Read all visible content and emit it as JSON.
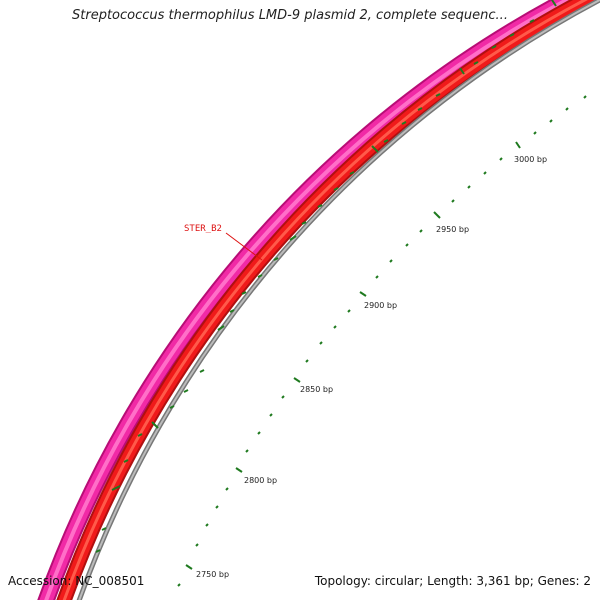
{
  "map": {
    "title": "Streptococcus thermophilus LMD-9 plasmid 2, complete sequenc...",
    "accession_text": "Accession: NC_008501",
    "info_text": "Topology: circular; Length: 3,361 bp; Genes: 2",
    "colors": {
      "outer_ring": "#ee1b9b",
      "inner_ring": "#f01a1a",
      "backbone": "#888888",
      "ticks": "#1f7a1f",
      "feature_label": "#dd1111"
    },
    "feature_label": "STER_B2",
    "bp_ticks": [
      {
        "bp": 2750,
        "label": "2750 bp"
      },
      {
        "bp": 2800,
        "label": "2800 bp"
      },
      {
        "bp": 2850,
        "label": "2850 bp"
      },
      {
        "bp": 2900,
        "label": "2900 bp"
      },
      {
        "bp": 2950,
        "label": "2950 bp"
      },
      {
        "bp": 3000,
        "label": "3000 bp"
      }
    ]
  }
}
